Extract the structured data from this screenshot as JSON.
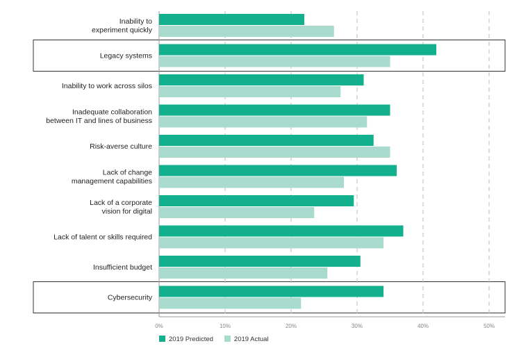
{
  "chart_data": {
    "type": "bar",
    "orientation": "horizontal",
    "title": "",
    "xlabel": "",
    "ylabel": "",
    "xlim": [
      0,
      50
    ],
    "x_ticks": [
      "0%",
      "10%",
      "20%",
      "30%",
      "40%",
      "50%"
    ],
    "grid": "vertical dashed",
    "legend_position": "bottom-left",
    "categories": [
      [
        "Inability to",
        "experiment quickly"
      ],
      [
        "Legacy systems"
      ],
      [
        "Inability to work across silos"
      ],
      [
        "Inadequate collaboration",
        "between IT and lines of business"
      ],
      [
        "Risk-averse culture"
      ],
      [
        "Lack of change",
        "management capabilities"
      ],
      [
        "Lack of a corporate",
        "vision for digital"
      ],
      [
        "Lack of talent or skills required"
      ],
      [
        "Insufficient budget"
      ],
      [
        "Cybersecurity"
      ]
    ],
    "highlighted_categories": [
      1,
      9
    ],
    "series": [
      {
        "name": "2019 Predicted",
        "color": "#13b08e",
        "values": [
          22,
          42,
          31,
          35,
          32.5,
          36,
          29.5,
          37,
          30.5,
          34
        ]
      },
      {
        "name": "2019 Actual",
        "color": "#a9dace",
        "values": [
          26.5,
          35,
          27.5,
          31.5,
          35,
          28,
          23.5,
          34,
          25.5,
          21.5
        ]
      }
    ]
  }
}
